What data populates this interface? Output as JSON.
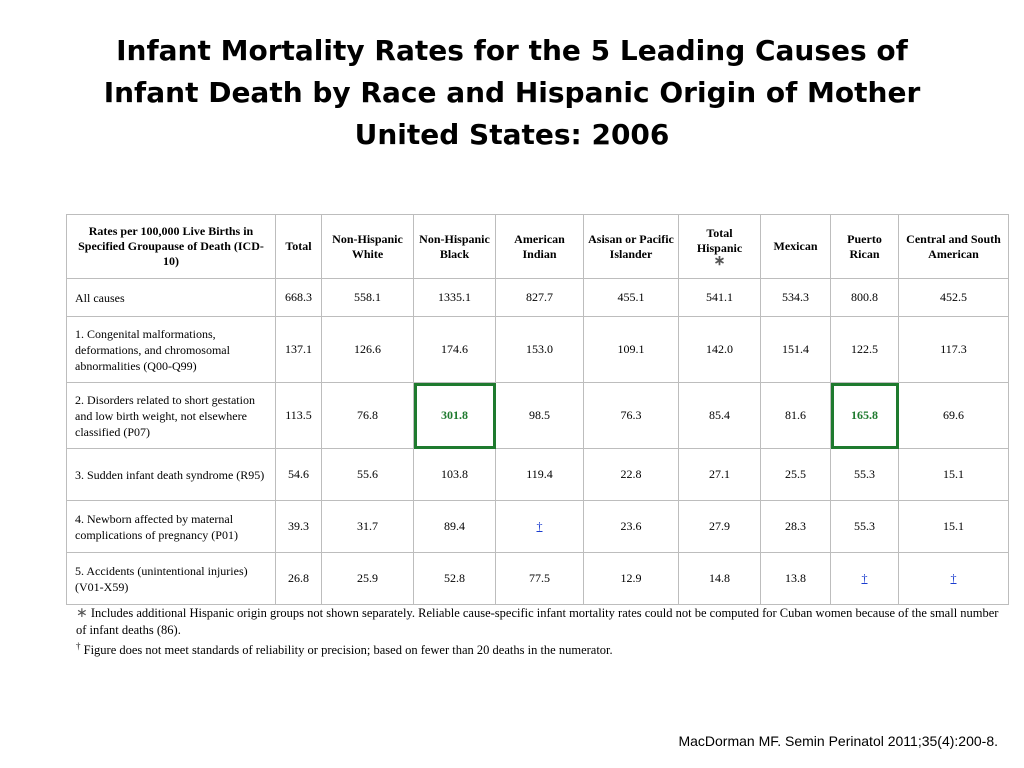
{
  "title": {
    "line1": "Infant Mortality Rates for the 5 Leading Causes of",
    "line2": "Infant Death by Race and Hispanic Origin of Mother",
    "line3": "United States: 2006"
  },
  "table": {
    "header_label": "Rates per 100,000 Live Births in Specified Groupause of Death (ICD-10)",
    "columns": [
      "Total",
      "Non-Hispanic White",
      "Non-Hispanic Black",
      "American Indian",
      "Asisan or Pacific Islander",
      "Total Hispanic",
      "Mexican",
      "Puerto Rican",
      "Central and South American"
    ],
    "total_hispanic_marker": "∗",
    "rows": [
      {
        "label": "All causes",
        "values": [
          "668.3",
          "558.1",
          "1335.1",
          "827.7",
          "455.1",
          "541.1",
          "534.3",
          "800.8",
          "452.5"
        ]
      },
      {
        "label": "1. Congenital malformations, deformations, and chromosomal abnormalities (Q00-Q99)",
        "values": [
          "137.1",
          "126.6",
          "174.6",
          "153.0",
          "109.1",
          "142.0",
          "151.4",
          "122.5",
          "117.3"
        ]
      },
      {
        "label": "2. Disorders related to short gestation and low birth weight, not elsewhere classified (P07)",
        "values": [
          "113.5",
          "76.8",
          "301.8",
          "98.5",
          "76.3",
          "85.4",
          "81.6",
          "165.8",
          "69.6"
        ]
      },
      {
        "label": "3. Sudden infant death syndrome (R95)",
        "values": [
          "54.6",
          "55.6",
          "103.8",
          "119.4",
          "22.8",
          "27.1",
          "25.5",
          "55.3",
          "15.1"
        ]
      },
      {
        "label": "4. Newborn affected by maternal complications of pregnancy (P01)",
        "values": [
          "39.3",
          "31.7",
          "89.4",
          "†",
          "23.6",
          "27.9",
          "28.3",
          "55.3",
          "15.1"
        ]
      },
      {
        "label": "5. Accidents (unintentional injuries) (V01-X59)",
        "values": [
          "26.8",
          "25.9",
          "52.8",
          "77.5",
          "12.9",
          "14.8",
          "13.8",
          "†",
          "†"
        ]
      }
    ],
    "highlight_color": "#1e7a2e"
  },
  "notes": {
    "star_symbol": "∗",
    "star_note": "Includes additional Hispanic origin groups not shown separately. Reliable cause-specific infant mortality rates could not be computed for Cuban women because of the small number of infant deaths (86).",
    "dagger_symbol": "†",
    "dagger_note": "Figure does not meet standards of reliability or precision; based on fewer than 20 deaths in the numerator."
  },
  "citation": "MacDorman MF. Semin Perinatol 2011;35(4):200-8."
}
